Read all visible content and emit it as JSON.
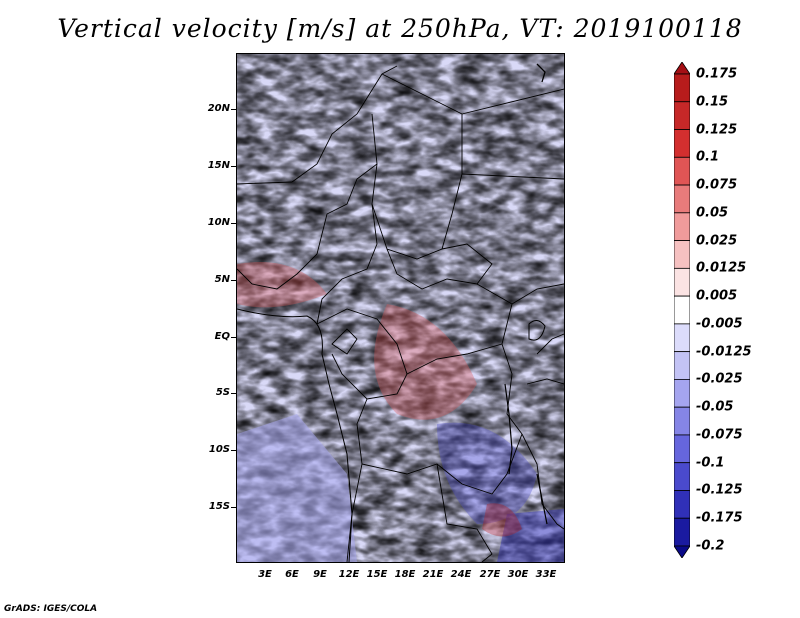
{
  "title": "Vertical velocity [m/s] at 250hPa, VT: 2019100118",
  "footer": "GrADS: IGES/COLA",
  "lat_labels": [
    "20N",
    "15N",
    "10N",
    "5N",
    "EQ",
    "5S",
    "10S",
    "15S"
  ],
  "lon_labels": [
    "3E",
    "6E",
    "9E",
    "12E",
    "15E",
    "18E",
    "21E",
    "24E",
    "27E",
    "30E",
    "33E"
  ],
  "colorbar": {
    "labels": [
      "0.175",
      "0.15",
      "0.125",
      "0.1",
      "0.075",
      "0.05",
      "0.025",
      "0.0125",
      "0.005",
      "-0.005",
      "-0.0125",
      "-0.025",
      "-0.05",
      "-0.075",
      "-0.1",
      "-0.125",
      "-0.175",
      "-0.2"
    ],
    "colors": [
      "#a50f15",
      "#b71c1c",
      "#c62828",
      "#d32f2f",
      "#e05555",
      "#e87b7b",
      "#f09b9b",
      "#f6c1c1",
      "#fbe3e3",
      "#ffffff",
      "#dcdcfb",
      "#c3c3f5",
      "#a5a5ef",
      "#8585e6",
      "#6666dd",
      "#4a4acd",
      "#3030b8",
      "#1a1aa0",
      "#0a0a88"
    ]
  }
}
